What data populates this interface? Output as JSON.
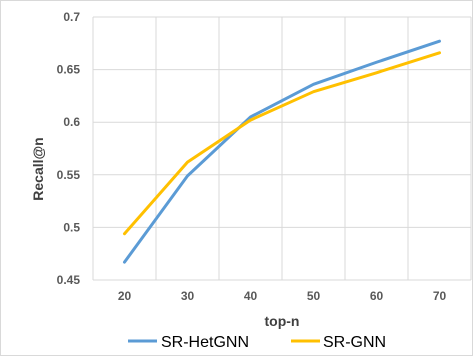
{
  "chart_data": {
    "type": "line",
    "x": [
      20,
      30,
      40,
      50,
      60,
      70
    ],
    "xlabel": "top-n",
    "ylabel": "Recall@n",
    "ylim": [
      0.45,
      0.7
    ],
    "yticks": [
      "0.45",
      "0.5",
      "0.55",
      "0.6",
      "0.65",
      "0.7"
    ],
    "xticks": [
      "20",
      "30",
      "40",
      "50",
      "60",
      "70"
    ],
    "grid": true,
    "legend_position": "bottom",
    "series": [
      {
        "name": "SR-HetGNN",
        "color": "#5b9bd5",
        "values": [
          0.467,
          0.549,
          0.605,
          0.636,
          0.657,
          0.677
        ]
      },
      {
        "name": "SR-GNN",
        "color": "#ffc000",
        "values": [
          0.494,
          0.562,
          0.602,
          0.629,
          0.647,
          0.666
        ]
      }
    ]
  }
}
